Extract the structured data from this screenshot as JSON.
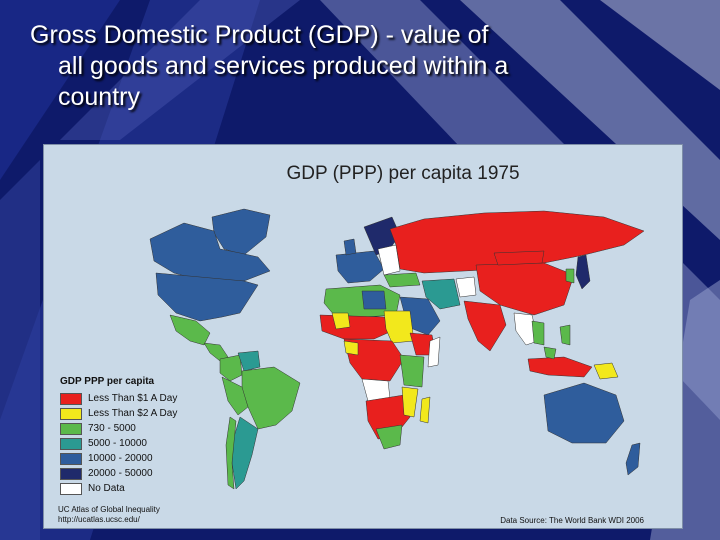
{
  "slide": {
    "title_lines": [
      "Gross Domestic Product (GDP) - value of",
      "all goods and services produced within a",
      "country"
    ]
  },
  "map": {
    "title": "GDP (PPP) per capita 1975",
    "legend": {
      "title": "GDP PPP per capita",
      "items": [
        {
          "label": "Less Than $1 A Day",
          "color": "#e8201e"
        },
        {
          "label": "Less Than $2 A Day",
          "color": "#f2e81c"
        },
        {
          "label": "730 - 5000",
          "color": "#5bb94b"
        },
        {
          "label": "5000 - 10000",
          "color": "#2b9a92"
        },
        {
          "label": "10000 - 20000",
          "color": "#2f5d9c"
        },
        {
          "label": "20000 - 50000",
          "color": "#1f2a6b"
        },
        {
          "label": "No Data",
          "color": "#ffffff"
        }
      ]
    },
    "credit_lines": [
      "UC Atlas of Global Inequality",
      "http://ucatlas.ucsc.edu/"
    ],
    "source": "Data Source: The World Bank WDI 2006"
  }
}
